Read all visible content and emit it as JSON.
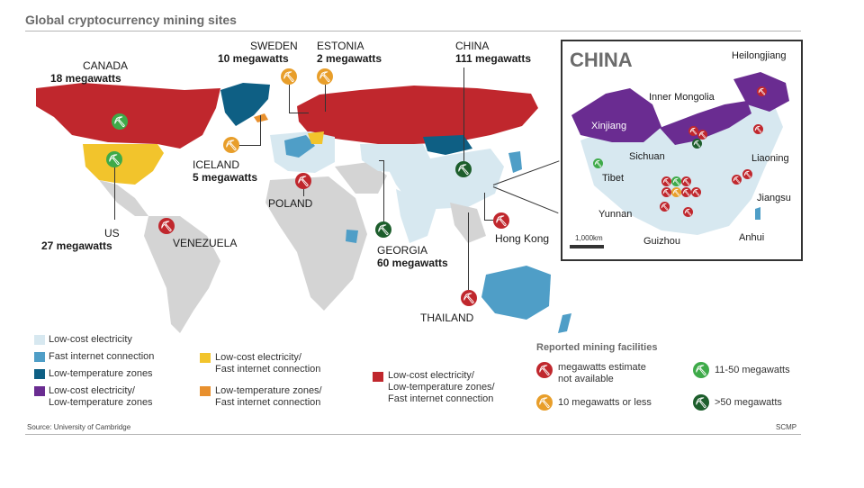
{
  "title": "Global cryptocurrency mining sites",
  "colors": {
    "low_cost_electricity": "#d7e8f0",
    "fast_internet": "#4f9ec7",
    "low_temperature": "#0e5f84",
    "low_cost_low_temp": "#6a2c91",
    "low_cost_fast_internet": "#f2c42c",
    "low_temp_fast_internet": "#e8902e",
    "all_three": "#c0272d",
    "other_land": "#d4d4d4"
  },
  "countries": {
    "canada": {
      "name": "CANADA",
      "mw": "18 megawatts",
      "icon": "pickaxe-green-icon"
    },
    "us": {
      "name": "US",
      "mw": "27 megawatts",
      "icon": "pickaxe-green-icon"
    },
    "iceland": {
      "name": "ICELAND",
      "mw": "5 megawatts",
      "icon": "pickaxe-orange-icon"
    },
    "sweden": {
      "name": "SWEDEN",
      "mw": "10 megawatts",
      "icon": "pickaxe-orange-icon"
    },
    "estonia": {
      "name": "ESTONIA",
      "mw": "2 megawatts",
      "icon": "pickaxe-orange-icon"
    },
    "china": {
      "name": "CHINA",
      "mw": "111 megawatts",
      "icon": "pickaxe-darkgreen-icon"
    },
    "poland": {
      "name": "POLAND",
      "icon": "pickaxe-red-icon"
    },
    "venezuela": {
      "name": "VENEZUELA",
      "icon": "pickaxe-red-icon"
    },
    "georgia": {
      "name": "GEORGIA",
      "mw": "60 megawatts",
      "icon": "pickaxe-darkgreen-icon"
    },
    "hong_kong": {
      "name": "Hong Kong",
      "icon": "pickaxe-red-icon"
    },
    "thailand": {
      "name": "THAILAND",
      "icon": "pickaxe-red-icon"
    }
  },
  "inset": {
    "title": "CHINA",
    "scale": "1,000km",
    "regions": [
      "Heilongjiang",
      "Inner Mongolia",
      "Xinjiang",
      "Liaoning",
      "Sichuan",
      "Tibet",
      "Jiangsu",
      "Yunnan",
      "Anhui",
      "Guizhou"
    ]
  },
  "legend": {
    "low_cost_electricity": "Low-cost electricity",
    "fast_internet": "Fast internet connection",
    "low_temperature": "Low-temperature zones",
    "low_cost_low_temp": [
      "Low-cost electricity/",
      "Low-temperature zones"
    ],
    "low_cost_fast_internet": [
      "Low-cost electricity/",
      "Fast internet connection"
    ],
    "low_temp_fast_internet": [
      "Low-temperature zones/",
      "Fast internet connection"
    ],
    "all_three": [
      "Low-cost electricity/",
      "Low-temperature zones/",
      "Fast internet connection"
    ],
    "facilities_title": "Reported mining facilities",
    "facility_na": [
      "megawatts estimate",
      "not available"
    ],
    "facility_small": "10 megawatts or less",
    "facility_mid": "11-50 megawatts",
    "facility_large": ">50 megawatts"
  },
  "source": "Source: University of Cambridge",
  "credit": "SCMP"
}
